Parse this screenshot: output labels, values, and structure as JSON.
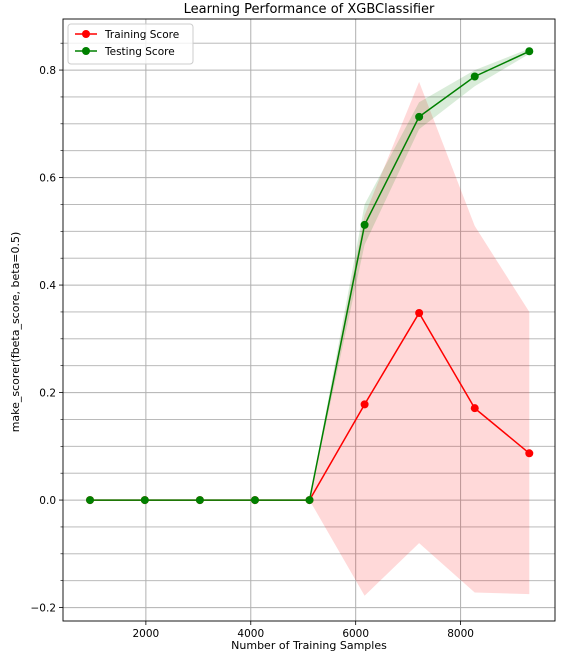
{
  "chart_data": {
    "type": "line",
    "title": "Learning Performance of XGBClassifier",
    "xlabel": "Number of Training Samples",
    "ylabel": "make_scorer(fbeta_score, beta=0.5)",
    "xlim": [
      420,
      9800
    ],
    "ylim": [
      -0.225,
      0.895
    ],
    "xticks": [
      2000,
      4000,
      6000,
      8000
    ],
    "xtick_labels": [
      "2000",
      "4000",
      "6000",
      "8000"
    ],
    "yticks": [
      -0.2,
      0.0,
      0.2,
      0.4,
      0.6,
      0.8
    ],
    "ytick_labels": [
      "−0.2",
      "0.0",
      "0.2",
      "0.4",
      "0.6",
      "0.8"
    ],
    "y_minor_step": 0.05,
    "grid": true,
    "legend_position": "top-left",
    "x": [
      935,
      1980,
      3030,
      4080,
      5120,
      6170,
      7210,
      8270,
      9310
    ],
    "series": [
      {
        "name": "Training Score",
        "color": "#ff0000",
        "marker": "circle",
        "values": [
          0.0,
          0.0,
          0.0,
          0.0,
          0.0,
          0.178,
          0.348,
          0.171,
          0.087
        ],
        "band_upper": [
          0.0,
          0.0,
          0.0,
          0.0,
          0.0,
          0.53,
          0.778,
          0.51,
          0.35
        ],
        "band_lower": [
          0.0,
          0.0,
          0.0,
          0.0,
          0.0,
          -0.178,
          -0.08,
          -0.172,
          -0.175
        ]
      },
      {
        "name": "Testing Score",
        "color": "#008000",
        "marker": "circle",
        "values": [
          0.0,
          0.0,
          0.0,
          0.0,
          0.0,
          0.512,
          0.713,
          0.788,
          0.835
        ],
        "band_upper": [
          0.0,
          0.0,
          0.0,
          0.0,
          0.0,
          0.55,
          0.74,
          0.8,
          0.84
        ],
        "band_lower": [
          0.0,
          0.0,
          0.0,
          0.0,
          0.0,
          0.475,
          0.69,
          0.77,
          0.83
        ]
      }
    ]
  }
}
